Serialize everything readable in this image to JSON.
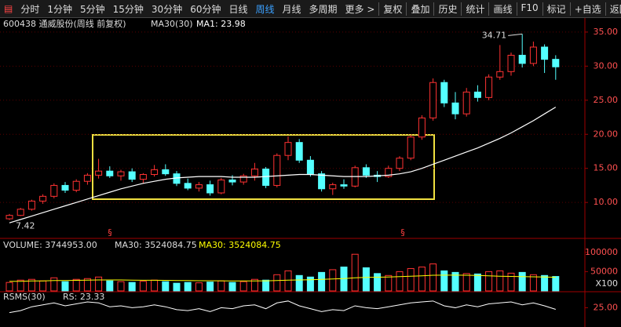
{
  "toolbar": {
    "left": [
      "分时",
      "1分钟",
      "5分钟",
      "15分钟",
      "30分钟",
      "60分钟",
      "日线",
      "周线",
      "月线",
      "多周期",
      "更多 >"
    ],
    "active_index": 7,
    "right": [
      "复权",
      "叠加",
      "历史",
      "统计",
      "画线",
      "F10",
      "标记",
      "+自选",
      "返回"
    ]
  },
  "markers": [
    "§",
    "§"
  ],
  "chart_data": [
    {
      "type": "candlestick",
      "title": "600438 通威股份(周线 前复权)",
      "indicator": "MA30(30)",
      "up_color": "#ff3232",
      "down_color": "#54ffff",
      "high_label": "34.71",
      "low_label": "7.42",
      "open": [
        7.6,
        8.1,
        9.0,
        10.2,
        10.9,
        12.5,
        11.8,
        13.1,
        14.0,
        14.6,
        13.9,
        14.5,
        13.4,
        14.1,
        14.8,
        14.2,
        12.8,
        12.1,
        12.6,
        11.4,
        13.3,
        13.0,
        13.9,
        14.9,
        12.5,
        16.9,
        18.8,
        16.2,
        14.2,
        12.0,
        12.6,
        12.4,
        15.1,
        14.0,
        13.8,
        15.0,
        16.5,
        19.6,
        22.4,
        27.6,
        24.6,
        23.0,
        26.2,
        25.4,
        28.4,
        29.2,
        31.6,
        30.4,
        32.8,
        31.0
      ],
      "high": [
        8.3,
        9.2,
        10.4,
        11.2,
        12.8,
        13.0,
        13.4,
        14.3,
        16.4,
        15.3,
        14.8,
        15.0,
        14.3,
        15.5,
        15.6,
        14.6,
        13.5,
        13.0,
        13.2,
        13.6,
        14.0,
        14.2,
        15.8,
        15.2,
        17.2,
        19.7,
        19.3,
        16.8,
        14.6,
        12.9,
        13.4,
        15.4,
        15.6,
        14.6,
        15.4,
        16.8,
        19.9,
        22.8,
        28.2,
        28.0,
        26.2,
        26.8,
        27.2,
        28.8,
        33.1,
        32.0,
        34.71,
        33.6,
        33.2,
        31.6
      ],
      "low": [
        7.42,
        8.0,
        8.8,
        9.8,
        10.6,
        11.4,
        11.5,
        12.6,
        13.5,
        13.6,
        13.2,
        13.0,
        12.8,
        13.8,
        13.9,
        12.4,
        11.8,
        11.6,
        11.0,
        11.2,
        12.5,
        12.6,
        13.2,
        12.1,
        12.2,
        16.2,
        15.8,
        13.8,
        11.6,
        11.1,
        12.0,
        12.2,
        13.6,
        13.0,
        13.6,
        14.6,
        16.2,
        19.2,
        22.0,
        24.0,
        22.2,
        22.6,
        24.8,
        25.0,
        28.0,
        28.6,
        29.8,
        30.0,
        29.0,
        28.0
      ],
      "close": [
        8.1,
        9.0,
        10.2,
        10.9,
        12.5,
        11.8,
        13.1,
        14.0,
        14.6,
        13.9,
        14.5,
        13.4,
        14.1,
        14.8,
        14.2,
        12.8,
        12.1,
        12.6,
        11.4,
        13.3,
        13.0,
        13.9,
        14.9,
        12.5,
        16.9,
        18.8,
        16.2,
        14.2,
        12.0,
        12.6,
        12.4,
        15.1,
        14.0,
        13.8,
        15.0,
        16.5,
        19.6,
        22.4,
        27.6,
        24.6,
        23.0,
        26.2,
        25.4,
        28.4,
        29.2,
        31.6,
        30.4,
        32.8,
        31.0,
        29.9
      ],
      "ma": {
        "label": "MA1: 23.98",
        "color": "#ffffff",
        "values": [
          7.0,
          7.5,
          8.0,
          8.5,
          9.0,
          9.5,
          10.0,
          10.5,
          11.0,
          11.5,
          12.0,
          12.4,
          12.8,
          13.1,
          13.4,
          13.6,
          13.7,
          13.8,
          13.8,
          13.8,
          13.7,
          13.7,
          13.7,
          13.8,
          13.9,
          14.0,
          14.1,
          14.1,
          14.0,
          13.9,
          13.8,
          13.8,
          13.8,
          13.9,
          14.0,
          14.2,
          14.5,
          15.0,
          15.6,
          16.2,
          16.8,
          17.4,
          18.0,
          18.7,
          19.4,
          20.2,
          21.1,
          22.0,
          23.0,
          23.98
        ]
      },
      "ylim": [
        4.84,
        37.06
      ],
      "yticks": [
        {
          "value": 10,
          "label": "10.00"
        },
        {
          "value": 15,
          "label": "15.00"
        },
        {
          "value": 20,
          "label": "20.00"
        },
        {
          "value": 25,
          "label": "25.00"
        },
        {
          "value": 30,
          "label": "30.00"
        },
        {
          "value": 35,
          "label": "35.00"
        }
      ]
    },
    {
      "type": "bar",
      "title": "VOLUME: 3744953.00",
      "ma_label": "MA30: 3524084.75",
      "ma_label2": "MA30: 3524084.75",
      "unit_label": "X100",
      "values": [
        22000,
        28000,
        30000,
        26000,
        34000,
        24000,
        30000,
        32000,
        36000,
        26000,
        24000,
        22000,
        25000,
        28000,
        24000,
        20000,
        22000,
        21000,
        23000,
        26000,
        22000,
        24000,
        30000,
        28000,
        42000,
        52000,
        40000,
        36000,
        48000,
        55000,
        62000,
        95000,
        60000,
        45000,
        40000,
        50000,
        58000,
        62000,
        70000,
        52000,
        48000,
        45000,
        44000,
        50000,
        52000,
        46000,
        48000,
        42000,
        40000,
        37449.53
      ],
      "ma": {
        "color": "#ffff00",
        "values": [
          25000,
          25000,
          26000,
          26000,
          27000,
          27000,
          27500,
          28000,
          28500,
          28500,
          28500,
          28000,
          27800,
          27600,
          27400,
          27000,
          26800,
          26500,
          26300,
          26200,
          26000,
          25900,
          26000,
          26200,
          27000,
          28000,
          28500,
          29000,
          30000,
          31000,
          32000,
          34000,
          35000,
          35500,
          36000,
          37000,
          38000,
          39000,
          40500,
          41000,
          41000,
          40500,
          40000,
          39000,
          38000,
          37500,
          37000,
          36500,
          36000,
          35240.8475
        ]
      },
      "ylim": [
        0,
        130000
      ],
      "yticks": [
        50000,
        100000
      ]
    },
    {
      "type": "line",
      "title": "RSMS(30)",
      "value_label": "RS: 23.33",
      "color": "#ffffff",
      "values": [
        20,
        22,
        26,
        28,
        30,
        27,
        29,
        31,
        30,
        26,
        27,
        25,
        26,
        28,
        26,
        23,
        22,
        24,
        21,
        25,
        24,
        27,
        28,
        24,
        30,
        32,
        27,
        24,
        21,
        23,
        22,
        27,
        25,
        24,
        26,
        28,
        30,
        31,
        32,
        27,
        25,
        28,
        26,
        29,
        30,
        31,
        28,
        30,
        27,
        23.33
      ],
      "ylim": [
        5,
        40
      ],
      "yticks": [
        {
          "value": 25,
          "label": "25.00"
        }
      ]
    }
  ]
}
